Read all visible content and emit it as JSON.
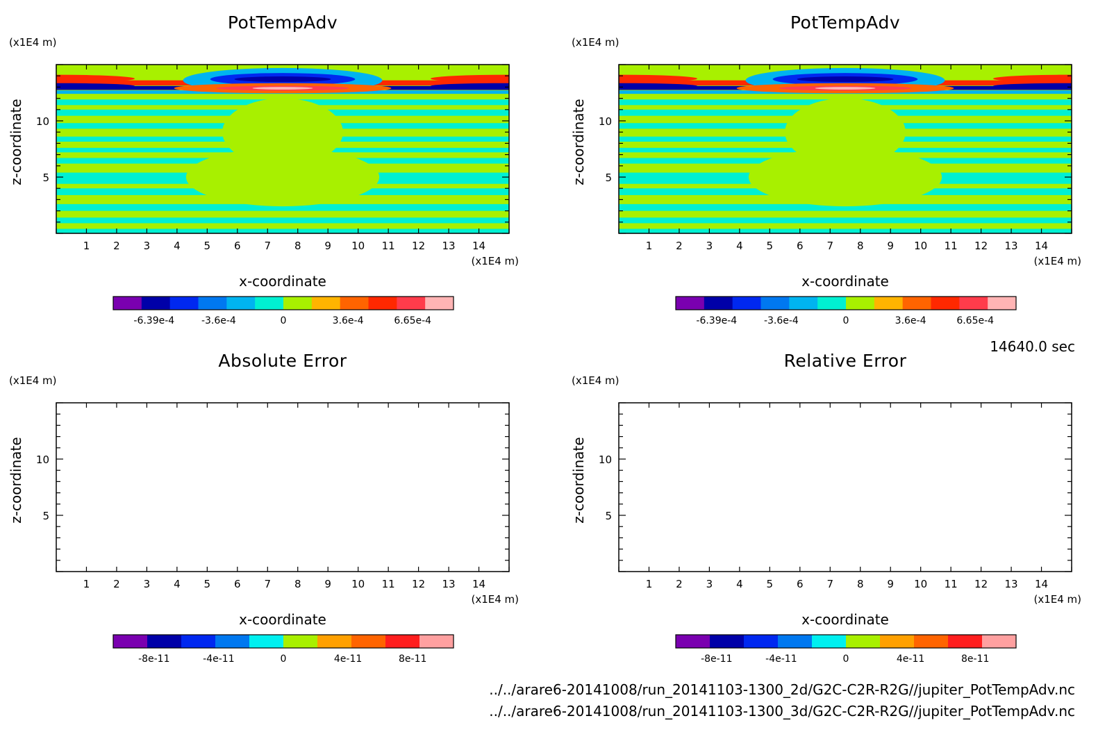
{
  "timestamp": "14640.0 sec",
  "files": [
    "../../arare6-20141008/run_20141103-1300_2d/G2C-C2R-R2G//jupiter_PotTempAdv.nc",
    "../../arare6-20141008/run_20141103-1300_3d/G2C-C2R-R2G//jupiter_PotTempAdv.nc"
  ],
  "chart_data": [
    {
      "type": "heatmap",
      "title": "PotTempAdv",
      "xlabel": "x-coordinate",
      "ylabel": "z-coordinate",
      "x_unit": "(x1E4 m)",
      "y_unit": "(x1E4 m)",
      "xlim": [
        0,
        15
      ],
      "ylim": [
        0,
        15
      ],
      "x_ticks": [
        "1",
        "2",
        "3",
        "4",
        "5",
        "6",
        "7",
        "8",
        "9",
        "10",
        "11",
        "12",
        "13",
        "14"
      ],
      "y_ticks": [
        "5",
        "10"
      ],
      "filled": true,
      "colorbar": {
        "colors": [
          "#7a00b0",
          "#0000a8",
          "#0028f0",
          "#0078f0",
          "#00b4f0",
          "#00f0d2",
          "#a8f000",
          "#ffb400",
          "#ff6400",
          "#ff2800",
          "#ff3c4b",
          "#ffb4b4"
        ],
        "labels": [
          "-6.39e-4",
          "-3.6e-4",
          "0",
          "3.6e-4",
          "6.65e-4"
        ]
      }
    },
    {
      "type": "heatmap",
      "title": "PotTempAdv",
      "xlabel": "x-coordinate",
      "ylabel": "z-coordinate",
      "x_unit": "(x1E4 m)",
      "y_unit": "(x1E4 m)",
      "xlim": [
        0,
        15
      ],
      "ylim": [
        0,
        15
      ],
      "x_ticks": [
        "1",
        "2",
        "3",
        "4",
        "5",
        "6",
        "7",
        "8",
        "9",
        "10",
        "11",
        "12",
        "13",
        "14"
      ],
      "y_ticks": [
        "5",
        "10"
      ],
      "filled": true,
      "colorbar": {
        "colors": [
          "#7a00b0",
          "#0000a8",
          "#0028f0",
          "#0078f0",
          "#00b4f0",
          "#00f0d2",
          "#a8f000",
          "#ffb400",
          "#ff6400",
          "#ff2800",
          "#ff3c4b",
          "#ffb4b4"
        ],
        "labels": [
          "-6.39e-4",
          "-3.6e-4",
          "0",
          "3.6e-4",
          "6.65e-4"
        ]
      }
    },
    {
      "type": "heatmap",
      "title": "Absolute Error",
      "xlabel": "x-coordinate",
      "ylabel": "z-coordinate",
      "x_unit": "(x1E4 m)",
      "y_unit": "(x1E4 m)",
      "xlim": [
        0,
        15
      ],
      "ylim": [
        0,
        15
      ],
      "x_ticks": [
        "1",
        "2",
        "3",
        "4",
        "5",
        "6",
        "7",
        "8",
        "9",
        "10",
        "11",
        "12",
        "13",
        "14"
      ],
      "y_ticks": [
        "5",
        "10"
      ],
      "filled": false,
      "colorbar": {
        "colors": [
          "#7a00b0",
          "#0000a8",
          "#0028f0",
          "#0078f0",
          "#00f0f0",
          "#a8f000",
          "#ffa000",
          "#ff6400",
          "#ff1e1e",
          "#ffa0a0"
        ],
        "labels": [
          "-8e-11",
          "-4e-11",
          "0",
          "4e-11",
          "8e-11"
        ]
      }
    },
    {
      "type": "heatmap",
      "title": "Relative Error",
      "xlabel": "x-coordinate",
      "ylabel": "z-coordinate",
      "x_unit": "(x1E4 m)",
      "y_unit": "(x1E4 m)",
      "xlim": [
        0,
        15
      ],
      "ylim": [
        0,
        15
      ],
      "x_ticks": [
        "1",
        "2",
        "3",
        "4",
        "5",
        "6",
        "7",
        "8",
        "9",
        "10",
        "11",
        "12",
        "13",
        "14"
      ],
      "y_ticks": [
        "5",
        "10"
      ],
      "filled": false,
      "colorbar": {
        "colors": [
          "#7a00b0",
          "#0000a8",
          "#0028f0",
          "#0078f0",
          "#00f0f0",
          "#a8f000",
          "#ffa000",
          "#ff6400",
          "#ff1e1e",
          "#ffa0a0"
        ],
        "labels": [
          "-8e-11",
          "-4e-11",
          "0",
          "4e-11",
          "8e-11"
        ]
      }
    }
  ]
}
